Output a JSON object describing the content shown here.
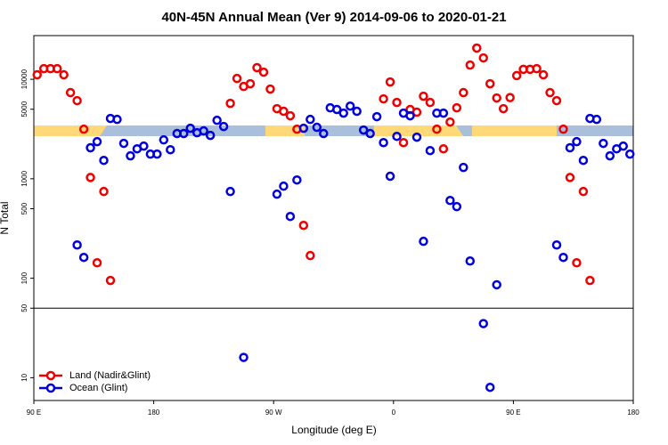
{
  "chart_data": {
    "type": "scatter",
    "title": "40N-45N Annual Mean (Ver 9)   2014-09-06 to 2020-01-21",
    "x_label": "Longitude (deg E)",
    "y_label": "N Total",
    "xlim": [
      90,
      540
    ],
    "ylim": [
      5.9,
      27500
    ],
    "log_y": true,
    "hline": 50,
    "legend": "bottomleft",
    "xticks": [
      {
        "value": 90,
        "label": "90 E"
      },
      {
        "value": 180,
        "label": "180"
      },
      {
        "value": 270,
        "label": "90 W"
      },
      {
        "value": 360,
        "label": "0"
      },
      {
        "value": 450,
        "label": "90 E"
      },
      {
        "value": 540,
        "label": "180"
      }
    ],
    "yticks": [
      10,
      50,
      100,
      500,
      1000,
      5000,
      10000
    ],
    "series": [
      {
        "name": "Land (Nadir&Glint)",
        "color": "#ee0000",
        "x": [
          92.5,
          97.5,
          102.5,
          107.5,
          112.5,
          117.5,
          122.5,
          127.5,
          132.5,
          137.5,
          142.5,
          147.5,
          237.5,
          242.5,
          247.5,
          252.5,
          257.5,
          262.5,
          267.5,
          272.5,
          277.5,
          282.5,
          287.5,
          292.5,
          297.5,
          352.5,
          357.5,
          362.5,
          367.5,
          372.5,
          377.5,
          382.5,
          387.5,
          392.5,
          397.5,
          402.5,
          407.5,
          412.5,
          417.5,
          422.5,
          427.5,
          432.5,
          437.5,
          442.5,
          447.5,
          452.5,
          457.5,
          462.5,
          467.5,
          472.5,
          477.5,
          482.5,
          487.5,
          492.5,
          497.5,
          502.5,
          507.5
        ],
        "values": [
          11100,
          12800,
          12800,
          12800,
          11100,
          7350,
          6100,
          3150,
          1030,
          143,
          745,
          95,
          5730,
          10200,
          8470,
          9020,
          13100,
          11800,
          7970,
          5070,
          4770,
          4300,
          3150,
          340,
          169,
          6360,
          9400,
          5850,
          2310,
          4970,
          4670,
          6760,
          5850,
          3150,
          2000,
          3720,
          5170,
          7350,
          13900,
          20600,
          16400,
          9020,
          6490,
          5070,
          6550,
          10900,
          12600,
          12600,
          12800,
          11100,
          7350,
          6100,
          3150,
          1030,
          143,
          745,
          95
        ]
      },
      {
        "name": "Ocean (Glint)",
        "color": "#0000dd",
        "x": [
          122.5,
          127.5,
          132.5,
          137.5,
          142.5,
          147.5,
          152.5,
          157.5,
          162.5,
          167.5,
          172.5,
          177.5,
          182.5,
          187.5,
          192.5,
          197.5,
          202.5,
          207.5,
          212.5,
          217.5,
          222.5,
          227.5,
          232.5,
          237.5,
          247.5,
          272.5,
          277.5,
          282.5,
          287.5,
          292.5,
          297.5,
          302.5,
          307.5,
          312.5,
          317.5,
          322.5,
          327.5,
          332.5,
          337.5,
          342.5,
          347.5,
          352.5,
          357.5,
          362.5,
          367.5,
          372.5,
          377.5,
          382.5,
          387.5,
          392.5,
          397.5,
          402.5,
          407.5,
          412.5,
          417.5,
          427.5,
          432.5,
          437.5,
          482.5,
          487.5,
          492.5,
          497.5,
          502.5,
          507.5,
          512.5,
          517.5,
          522.5,
          527.5,
          532.5,
          537.5
        ],
        "values": [
          216,
          162,
          2050,
          2360,
          1530,
          4040,
          3950,
          2270,
          1700,
          2000,
          2130,
          1770,
          1770,
          2460,
          1960,
          2850,
          2850,
          3220,
          2900,
          3030,
          2730,
          3870,
          3350,
          745,
          16,
          700,
          843,
          418,
          973,
          3220,
          3950,
          3290,
          2850,
          5170,
          4970,
          4570,
          5380,
          4770,
          3090,
          2850,
          4210,
          2310,
          1060,
          2670,
          4570,
          4300,
          2620,
          235,
          1920,
          4570,
          4570,
          605,
          525,
          1300,
          149,
          35,
          8,
          86,
          216,
          162,
          2050,
          2360,
          1530,
          4040,
          3950,
          2270,
          1700,
          2000,
          2130,
          1770
        ]
      }
    ]
  }
}
